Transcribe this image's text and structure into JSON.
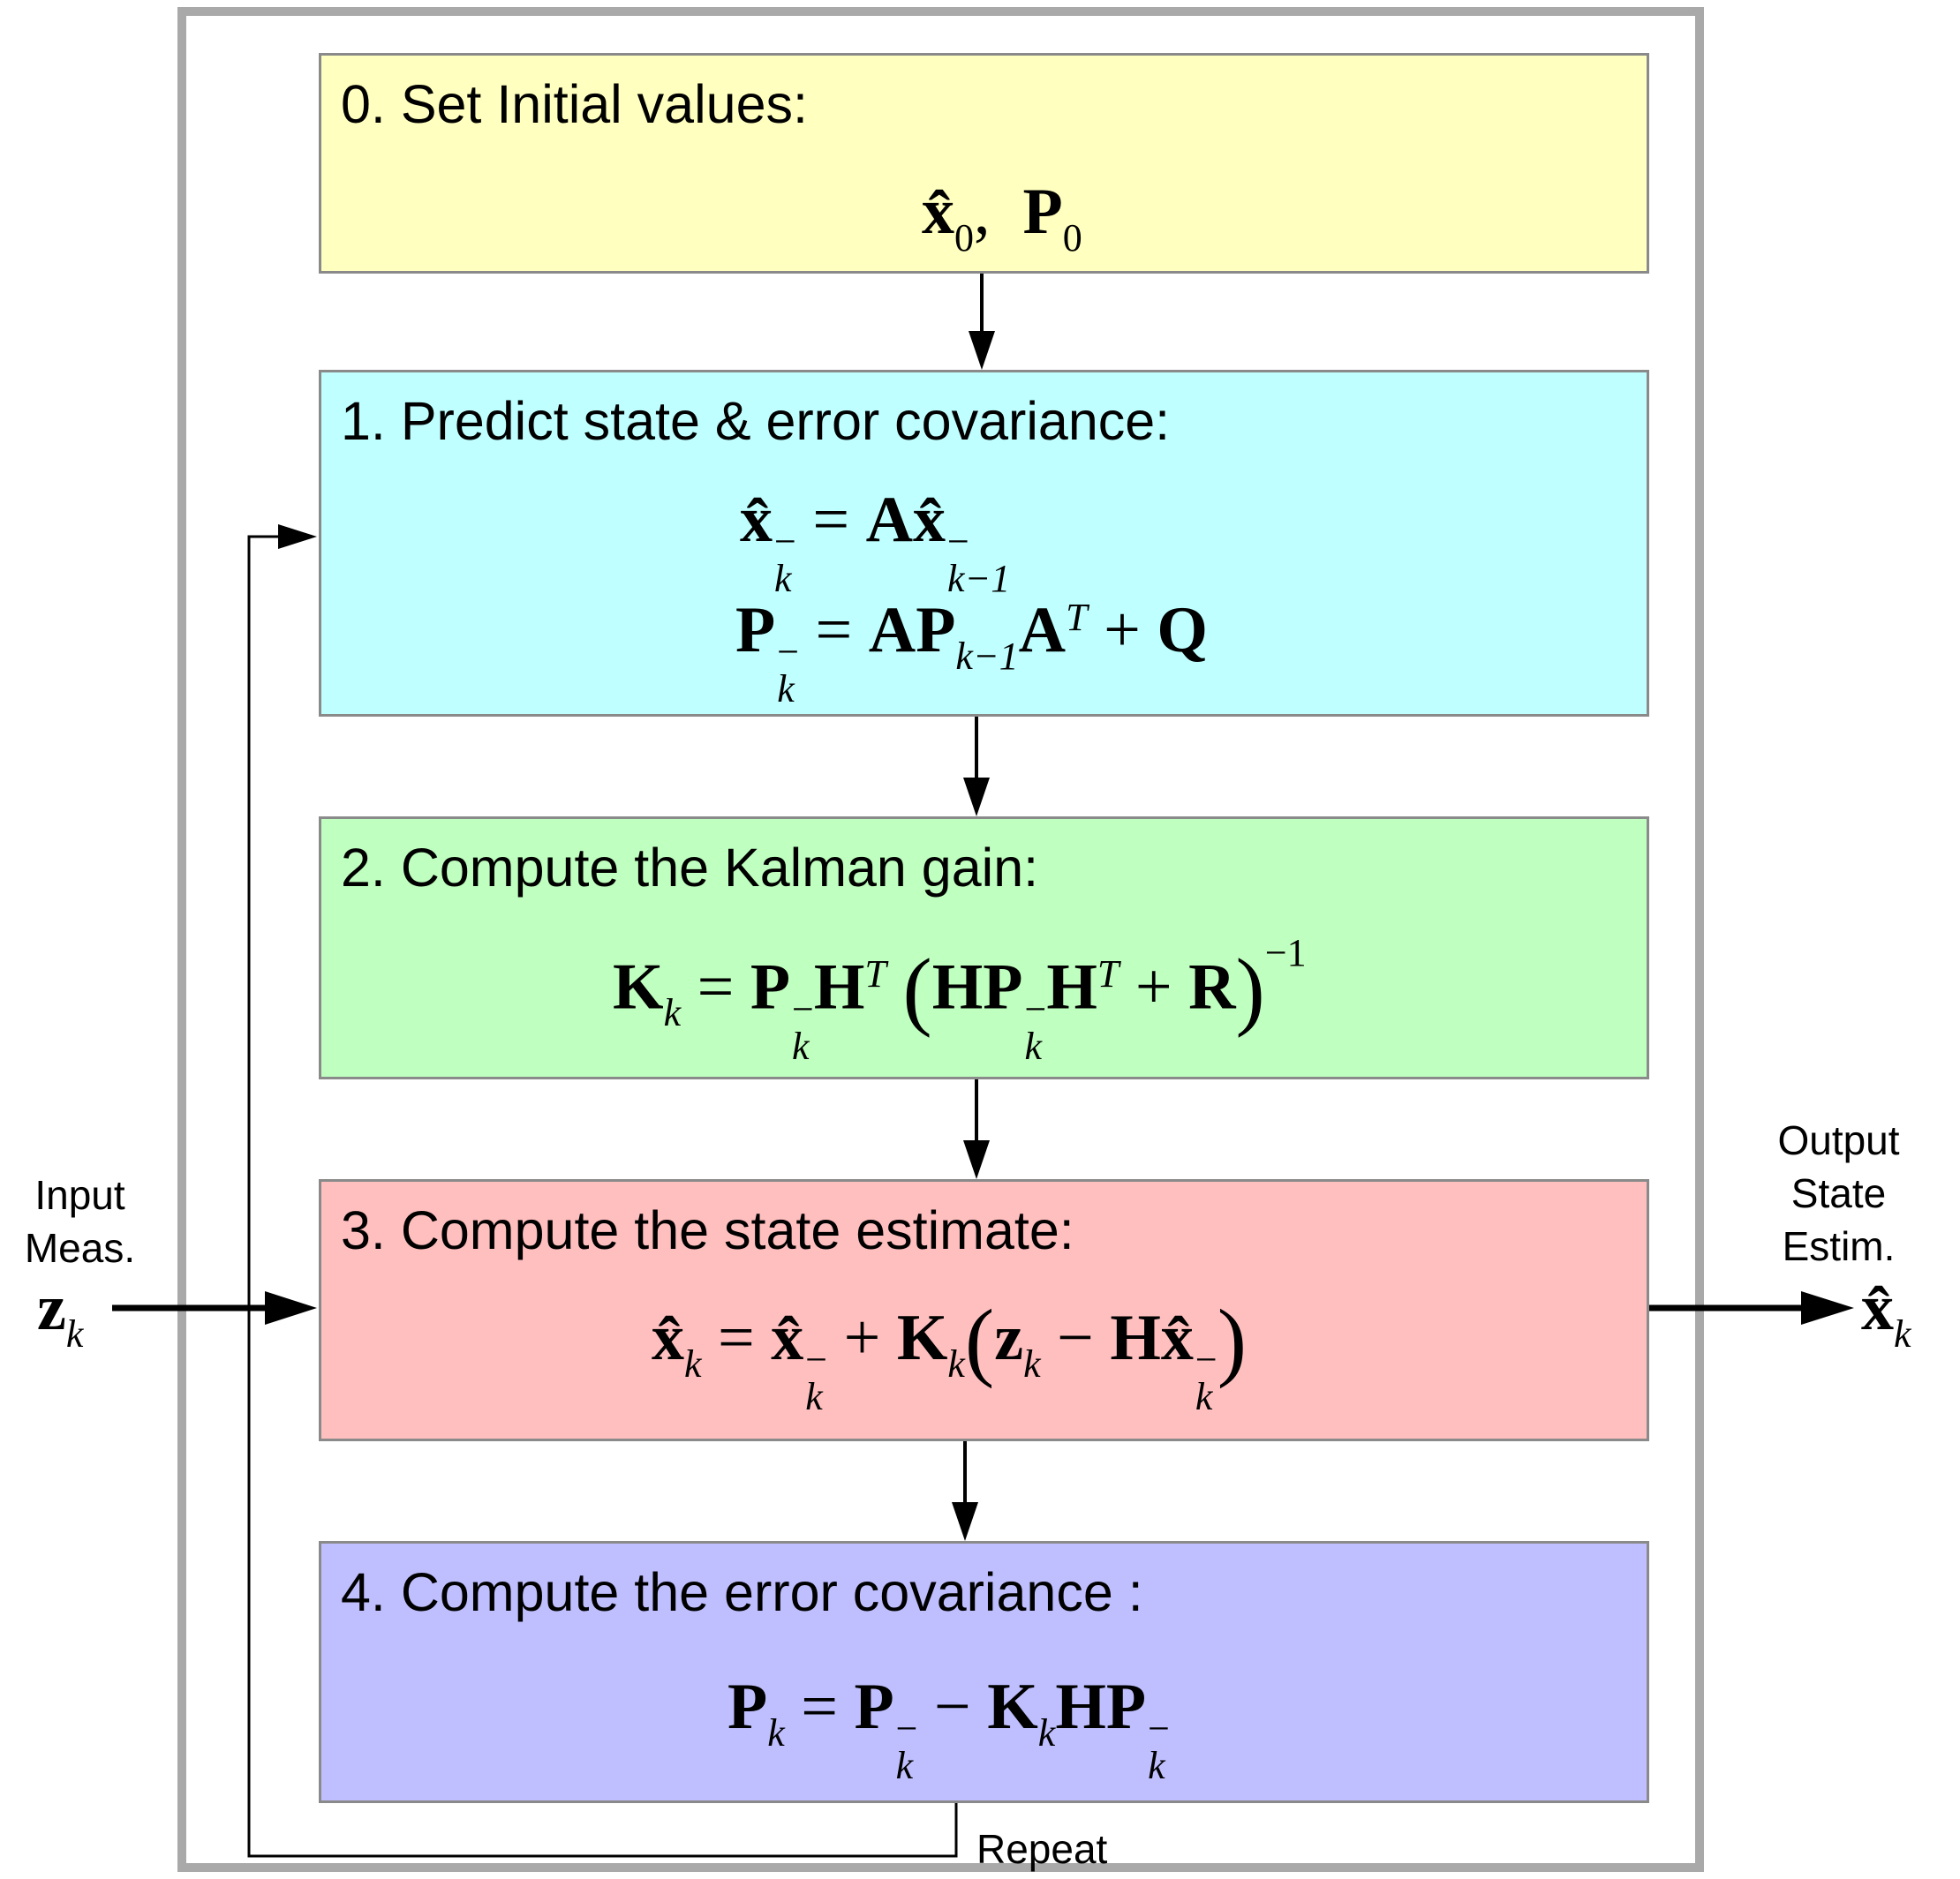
{
  "boxes": [
    {
      "title": "0. Set Initial values:",
      "color": "#ffffbf"
    },
    {
      "title": "1. Predict state & error covariance:",
      "color": "#bfffff"
    },
    {
      "title": "2. Compute the Kalman gain:",
      "color": "#bfffbf"
    },
    {
      "title": "3. Compute the state estimate:",
      "color": "#ffbfbf"
    },
    {
      "title": "4. Compute the error covariance :",
      "color": "#bfbfff"
    }
  ],
  "symbols": {
    "x_hat": "x̂",
    "P": "P",
    "A": "A",
    "Q": "Q",
    "K": "K",
    "H": "H",
    "R": "R",
    "z": "z",
    "sub_0": "0",
    "sub_k": "k",
    "sub_k_minus_1": "k−1",
    "sup_minus": "−",
    "sup_T": "T",
    "sup_inv": "−1",
    "eq_sign": "=",
    "plus": "+",
    "minus": "−",
    "comma": ",",
    "lparen": "(",
    "rparen": ")"
  },
  "input": {
    "line1": "Input",
    "line2": "Meas.",
    "symbol": "z",
    "sub": "k"
  },
  "output": {
    "line1": "Output",
    "line2": "State",
    "line3": "Estim.",
    "symbol": "x̂",
    "sub": "k"
  },
  "loop_label": "Repeat"
}
